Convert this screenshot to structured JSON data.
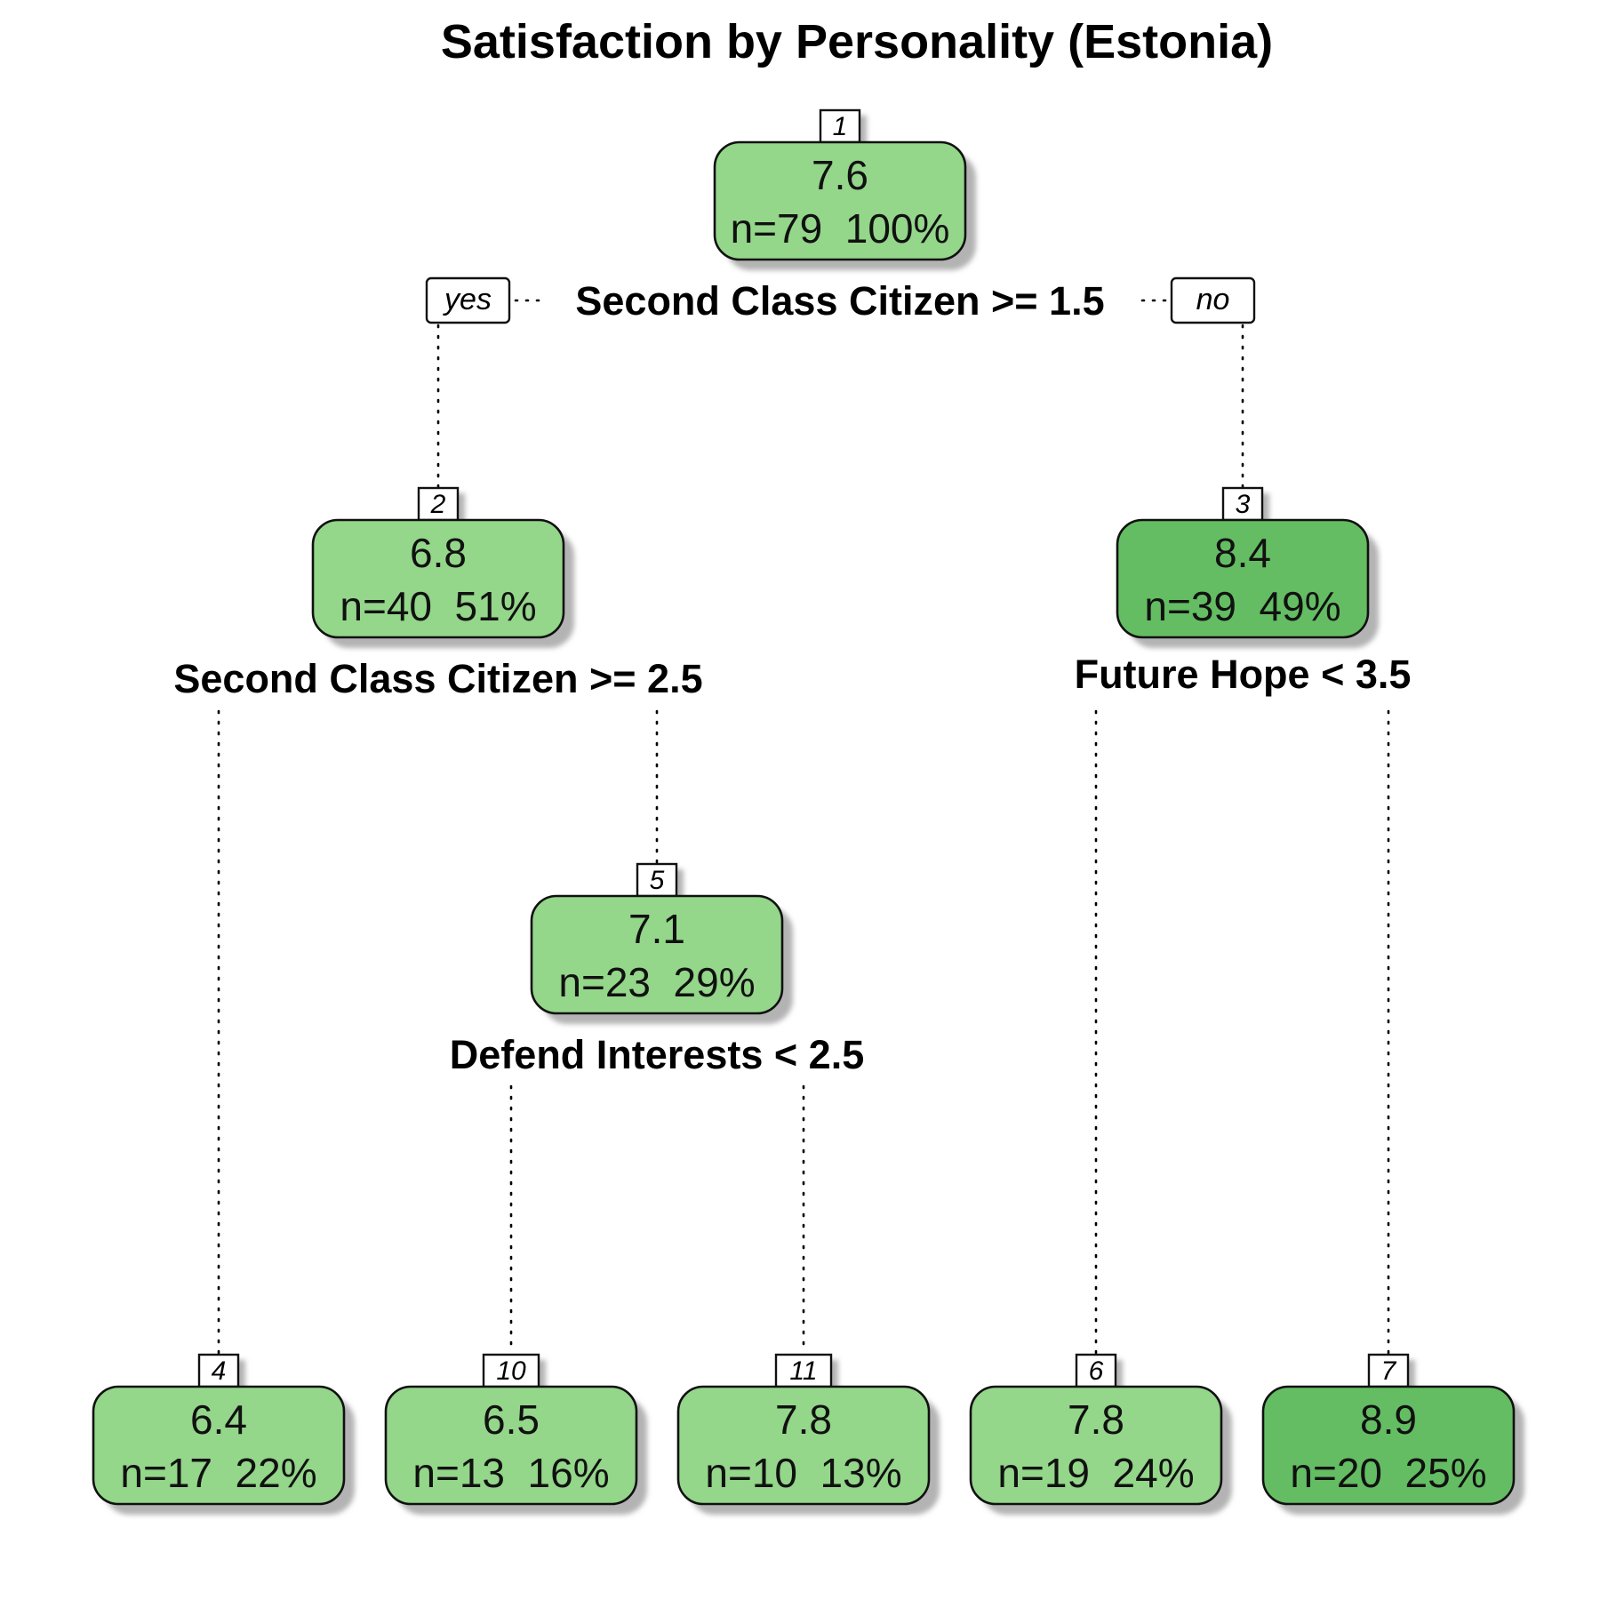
{
  "title": "Satisfaction by Personality (Estonia)",
  "colors": {
    "light_fill": "#94d68a",
    "dark_fill": "#64bd63",
    "shadow": "#b3b3b3",
    "border": "#111111"
  },
  "labels": {
    "yes": "yes",
    "no": "no"
  },
  "nodes": [
    {
      "id": "1",
      "value": "7.6",
      "stats": "n=79  100%",
      "shade": "light"
    },
    {
      "id": "2",
      "value": "6.8",
      "stats": "n=40  51%",
      "shade": "light"
    },
    {
      "id": "3",
      "value": "8.4",
      "stats": "n=39  49%",
      "shade": "dark"
    },
    {
      "id": "5",
      "value": "7.1",
      "stats": "n=23  29%",
      "shade": "light"
    },
    {
      "id": "4",
      "value": "6.4",
      "stats": "n=17  22%",
      "shade": "light"
    },
    {
      "id": "10",
      "value": "6.5",
      "stats": "n=13  16%",
      "shade": "light"
    },
    {
      "id": "11",
      "value": "7.8",
      "stats": "n=10  13%",
      "shade": "light"
    },
    {
      "id": "6",
      "value": "7.8",
      "stats": "n=19  24%",
      "shade": "light"
    },
    {
      "id": "7",
      "value": "8.9",
      "stats": "n=20  25%",
      "shade": "dark"
    }
  ],
  "splits": [
    {
      "node": "1",
      "text": "Second Class Citizen >= 1.5"
    },
    {
      "node": "2",
      "text": "Second Class Citizen >= 2.5"
    },
    {
      "node": "3",
      "text": "Future Hope < 3.5"
    },
    {
      "node": "5",
      "text": "Defend Interests < 2.5"
    }
  ],
  "edges": [
    {
      "from": "1",
      "to": "2"
    },
    {
      "from": "1",
      "to": "3"
    },
    {
      "from": "2",
      "to": "4"
    },
    {
      "from": "2",
      "to": "5"
    },
    {
      "from": "5",
      "to": "10"
    },
    {
      "from": "5",
      "to": "11"
    },
    {
      "from": "3",
      "to": "6"
    },
    {
      "from": "3",
      "to": "7"
    }
  ]
}
